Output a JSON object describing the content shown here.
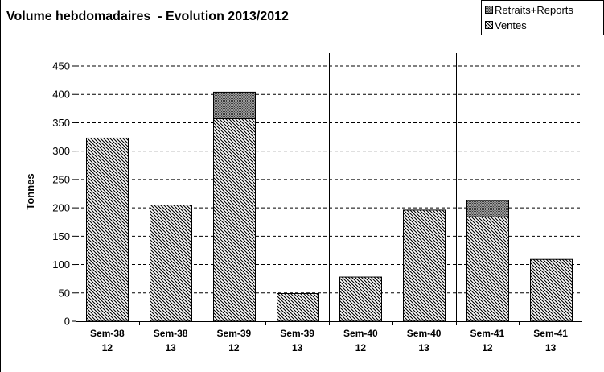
{
  "chart_data": {
    "type": "bar",
    "stacked": true,
    "title": "Volume hebdomadaires  - Evolution 2013/2012",
    "ylabel": "Tonnes",
    "xlabel": "",
    "ylim": [
      0,
      450
    ],
    "yticks": [
      0,
      50,
      100,
      150,
      200,
      250,
      300,
      350,
      400,
      450
    ],
    "grid": "horizontal-dashed",
    "legend_position": "top-right",
    "categories": [
      {
        "line1": "Sem-38",
        "line2": "12"
      },
      {
        "line1": "Sem-38",
        "line2": "13"
      },
      {
        "line1": "Sem-39",
        "line2": "12"
      },
      {
        "line1": "Sem-39",
        "line2": "13"
      },
      {
        "line1": "Sem-40",
        "line2": "12"
      },
      {
        "line1": "Sem-40",
        "line2": "13"
      },
      {
        "line1": "Sem-41",
        "line2": "12"
      },
      {
        "line1": "Sem-41",
        "line2": "13"
      }
    ],
    "series": [
      {
        "name": "Ventes",
        "values": [
          323,
          205,
          357,
          49,
          78,
          196,
          184,
          109
        ]
      },
      {
        "name": "Retraits+Reports",
        "values": [
          0,
          0,
          47,
          0,
          0,
          0,
          29,
          0
        ]
      }
    ],
    "legend": [
      "Retraits+Reports",
      "Ventes"
    ]
  }
}
